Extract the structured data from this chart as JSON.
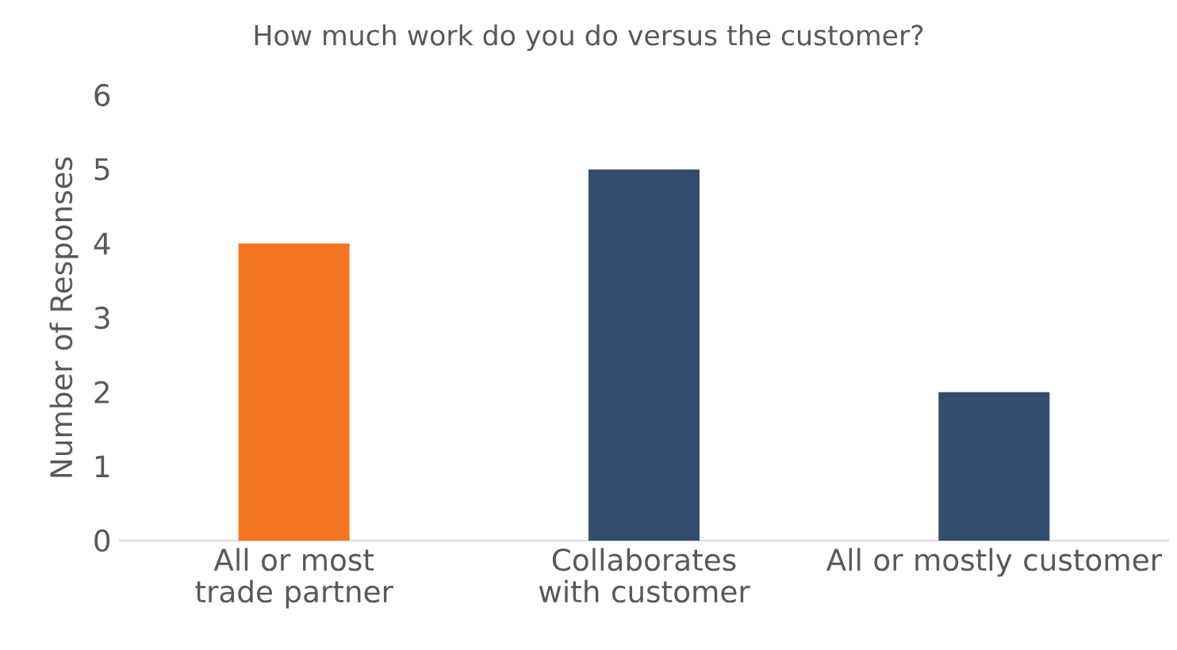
{
  "chart_data": {
    "type": "bar",
    "title": "How much work do you do versus the customer?",
    "ylabel": "Number of Responses",
    "categories": [
      "All or most trade partner",
      "Collaborates with customer",
      "All or mostly customer"
    ],
    "values": [
      4,
      5,
      2
    ],
    "colors": [
      "#f47521",
      "#324d6e",
      "#324d6e"
    ],
    "ylim": [
      0,
      6
    ],
    "yticks": [
      0,
      1,
      2,
      3,
      4,
      5,
      6
    ]
  }
}
